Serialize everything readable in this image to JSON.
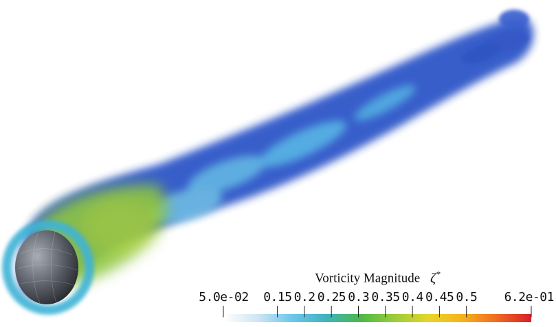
{
  "colorbar": {
    "title": "Vorticity Magnitude",
    "symbol": "ζ",
    "symbol_sup": "*",
    "min": 0.05,
    "max": 0.62,
    "tick_labels": [
      "5.0e-02",
      "0.15",
      "0.2",
      "0.25",
      "0.3",
      "0.35",
      "0.4",
      "0.45",
      "0.5",
      "6.2e-01"
    ],
    "tick_values": [
      0.05,
      0.15,
      0.2,
      0.25,
      0.3,
      0.35,
      0.4,
      0.45,
      0.5,
      0.62
    ],
    "colormap": [
      "#ffffff",
      "#cfe6f3",
      "#6fc6ea",
      "#3fb3c0",
      "#4cb84a",
      "#9bcc3a",
      "#e6d52a",
      "#f6b21a",
      "#ef6a22",
      "#d71f27"
    ]
  },
  "scene": {
    "description_colors": {
      "wake_core": "#2f57c8",
      "wake_light": "#5ec6ea",
      "near_body": "#8ec63f",
      "sphere": "#6b6f78",
      "background": "#ffffff"
    }
  }
}
